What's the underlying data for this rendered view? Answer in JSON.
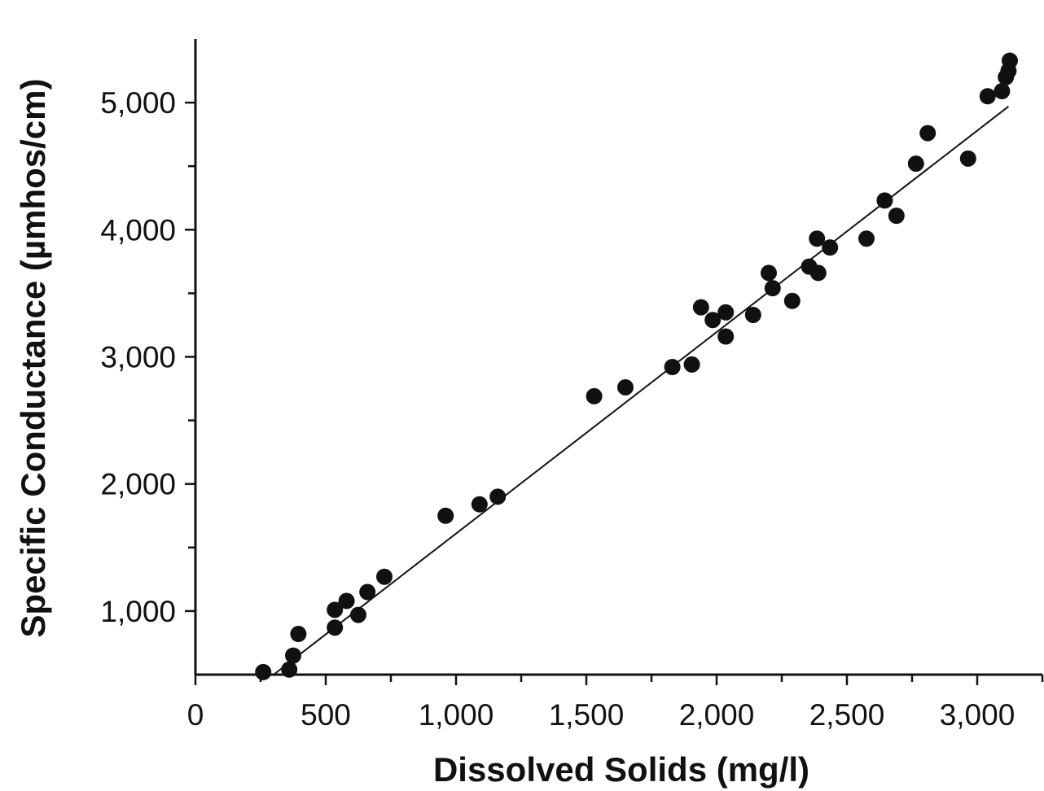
{
  "chart_data": {
    "type": "scatter",
    "xlabel": "Dissolved Solids (mg/l)",
    "ylabel": "Specific Conductance (µmhos/cm)",
    "xlim": [
      0,
      3250
    ],
    "ylim": [
      500,
      5500
    ],
    "x_ticks": [
      0,
      500,
      1000,
      1500,
      2000,
      2500,
      3000
    ],
    "x_tick_labels": [
      "0",
      "500",
      "1,000",
      "1,500",
      "2,000",
      "2,500",
      "3,000"
    ],
    "x_minor_ticks": [
      250,
      750,
      1250,
      1750,
      2250,
      2750,
      3250
    ],
    "y_ticks": [
      1000,
      2000,
      3000,
      4000,
      5000
    ],
    "y_tick_labels": [
      "1,000",
      "2,000",
      "3,000",
      "4,000",
      "5,000"
    ],
    "y_minor_ticks": [
      1500,
      2500,
      3500,
      4500
    ],
    "grid": false,
    "legend": "none",
    "trendline": {
      "type": "linear",
      "x": [
        300,
        3120
      ],
      "y": [
        500,
        4970
      ]
    },
    "points": [
      {
        "x": 260,
        "y": 520
      },
      {
        "x": 360,
        "y": 540
      },
      {
        "x": 375,
        "y": 650
      },
      {
        "x": 395,
        "y": 820
      },
      {
        "x": 535,
        "y": 870
      },
      {
        "x": 535,
        "y": 1010
      },
      {
        "x": 580,
        "y": 1080
      },
      {
        "x": 625,
        "y": 970
      },
      {
        "x": 660,
        "y": 1150
      },
      {
        "x": 725,
        "y": 1270
      },
      {
        "x": 960,
        "y": 1750
      },
      {
        "x": 1090,
        "y": 1840
      },
      {
        "x": 1160,
        "y": 1900
      },
      {
        "x": 1530,
        "y": 2690
      },
      {
        "x": 1650,
        "y": 2760
      },
      {
        "x": 1830,
        "y": 2920
      },
      {
        "x": 1905,
        "y": 2940
      },
      {
        "x": 1940,
        "y": 3390
      },
      {
        "x": 1985,
        "y": 3290
      },
      {
        "x": 2035,
        "y": 3350
      },
      {
        "x": 2035,
        "y": 3160
      },
      {
        "x": 2140,
        "y": 3330
      },
      {
        "x": 2200,
        "y": 3660
      },
      {
        "x": 2215,
        "y": 3540
      },
      {
        "x": 2290,
        "y": 3440
      },
      {
        "x": 2355,
        "y": 3710
      },
      {
        "x": 2385,
        "y": 3930
      },
      {
        "x": 2390,
        "y": 3660
      },
      {
        "x": 2435,
        "y": 3860
      },
      {
        "x": 2575,
        "y": 3930
      },
      {
        "x": 2645,
        "y": 4230
      },
      {
        "x": 2690,
        "y": 4110
      },
      {
        "x": 2765,
        "y": 4520
      },
      {
        "x": 2810,
        "y": 4760
      },
      {
        "x": 2965,
        "y": 4560
      },
      {
        "x": 3040,
        "y": 5050
      },
      {
        "x": 3095,
        "y": 5090
      },
      {
        "x": 3110,
        "y": 5200
      },
      {
        "x": 3120,
        "y": 5250
      },
      {
        "x": 3125,
        "y": 5330
      }
    ]
  }
}
